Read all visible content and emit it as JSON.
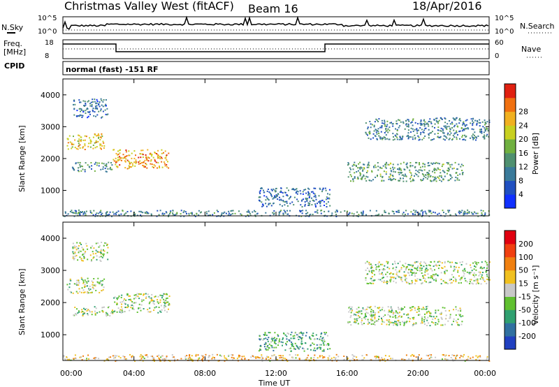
{
  "header": {
    "title": "Christmas Valley West (fitACF)",
    "beam": "Beam 16",
    "date": "18/Apr/2016"
  },
  "top_panels": {
    "nsky_label": "N.Sky",
    "nsky_ticks": [
      "10^5",
      "10^0"
    ],
    "nsearch_label": "N.Search",
    "nsearch_ticks": [
      "10^5",
      "10^0"
    ],
    "freq_label_1": "Freq.",
    "freq_label_2": "[MHz]",
    "freq_ticks": [
      "18",
      "8"
    ],
    "nave_label": "Nave",
    "nave_ticks": [
      "60",
      "0"
    ],
    "cpid_label": "CPID",
    "cpid_text": "normal (fast) -151 RF"
  },
  "chart_data": [
    {
      "type": "heatmap",
      "name": "power",
      "xlabel": "",
      "ylabel": "Slant Range [km]",
      "xlim": [
        0,
        24
      ],
      "ylim": [
        200,
        4500
      ],
      "y_ticks": [
        "1000",
        "2000",
        "3000",
        "4000"
      ],
      "colorbar_label": "Power [dB]",
      "colorbar_ticks": [
        "4",
        "8",
        "12",
        "16",
        "20",
        "24",
        "28"
      ],
      "colorbar_colors": [
        "#1030ff",
        "#2050c0",
        "#3a7a9a",
        "#4f9070",
        "#70b040",
        "#c8d020",
        "#f0b020",
        "#f07010",
        "#e02010"
      ],
      "scatter_regions": [
        {
          "t": [
            0.2,
            2.3
          ],
          "r": [
            2300,
            2800
          ],
          "level": 0.65
        },
        {
          "t": [
            2.8,
            6.0
          ],
          "r": [
            1700,
            2300
          ],
          "level": 0.75
        },
        {
          "t": [
            0.5,
            2.8
          ],
          "r": [
            1600,
            1900
          ],
          "level": 0.35
        },
        {
          "t": [
            16.0,
            22.5
          ],
          "r": [
            1300,
            1900
          ],
          "level": 0.4
        },
        {
          "t": [
            17.0,
            24.0
          ],
          "r": [
            2600,
            3300
          ],
          "level": 0.3
        },
        {
          "t": [
            0.5,
            2.5
          ],
          "r": [
            3300,
            3900
          ],
          "level": 0.25
        },
        {
          "t": [
            11.0,
            15.0
          ],
          "r": [
            500,
            1100
          ],
          "level": 0.25
        },
        {
          "t": [
            0.0,
            24.0
          ],
          "r": [
            200,
            400
          ],
          "level": 0.3
        }
      ]
    },
    {
      "type": "heatmap",
      "name": "velocity",
      "xlabel": "Time UT",
      "ylabel": "Slant Range [km]",
      "xlim": [
        0,
        24
      ],
      "ylim": [
        200,
        4500
      ],
      "x_ticks": [
        "00:00",
        "04:00",
        "08:00",
        "12:00",
        "16:00",
        "20:00",
        "00:00"
      ],
      "y_ticks": [
        "1000",
        "2000",
        "3000",
        "4000"
      ],
      "colorbar_label": "Velocity [m s⁻¹]",
      "colorbar_ticks": [
        "200",
        "100",
        "50",
        "15",
        "-15",
        "-50",
        "-100",
        "-200"
      ],
      "colorbar_colors": [
        "#2040c0",
        "#3070a0",
        "#30a070",
        "#60c030",
        "#c8c8c8",
        "#f0c020",
        "#f08010",
        "#f04010",
        "#e00010"
      ],
      "scatter_regions": [
        {
          "t": [
            0.2,
            2.3
          ],
          "r": [
            2300,
            2800
          ],
          "level": 0.45
        },
        {
          "t": [
            2.8,
            6.0
          ],
          "r": [
            1700,
            2300
          ],
          "level": 0.45
        },
        {
          "t": [
            0.5,
            2.8
          ],
          "r": [
            1600,
            1900
          ],
          "level": 0.45
        },
        {
          "t": [
            16.0,
            22.5
          ],
          "r": [
            1300,
            1900
          ],
          "level": 0.45
        },
        {
          "t": [
            17.0,
            24.0
          ],
          "r": [
            2600,
            3300
          ],
          "level": 0.45
        },
        {
          "t": [
            0.5,
            2.5
          ],
          "r": [
            3300,
            3900
          ],
          "level": 0.45
        },
        {
          "t": [
            11.0,
            15.0
          ],
          "r": [
            500,
            1100
          ],
          "level": 0.3
        },
        {
          "t": [
            0.0,
            24.0
          ],
          "r": [
            200,
            400
          ],
          "level": 0.6
        }
      ]
    }
  ]
}
